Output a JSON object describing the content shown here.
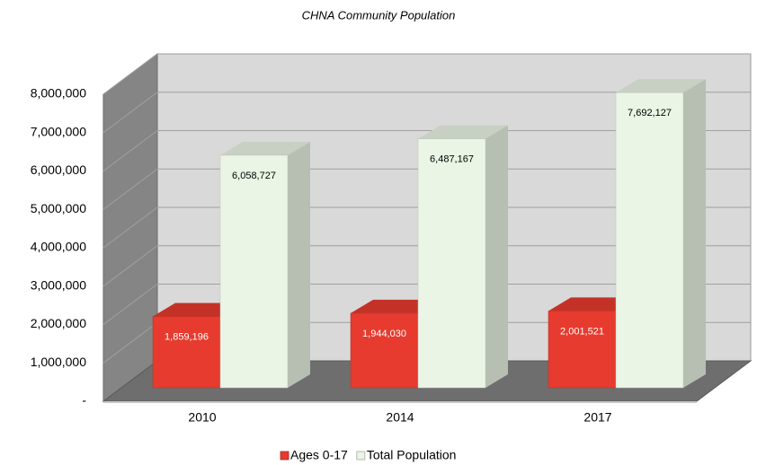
{
  "chart_data": {
    "type": "bar3d",
    "title": "CHNA Community Population",
    "categories": [
      "2010",
      "2014",
      "2017"
    ],
    "series": [
      {
        "name": "Ages 0-17",
        "color": "#e63b2e",
        "values": [
          1859196,
          1944030,
          2001521
        ],
        "value_labels": [
          "1,859,196",
          "1,944,030",
          "2,001,521"
        ]
      },
      {
        "name": "Total Population",
        "color": "#eaf5e5",
        "values": [
          6058727,
          6487167,
          7692127
        ],
        "value_labels": [
          "6,058,727",
          "6,487,167",
          "7,692,127"
        ]
      }
    ],
    "ylim": [
      0,
      8000000
    ],
    "yticks": [
      {
        "value": 0,
        "label": "-"
      },
      {
        "value": 1000000,
        "label": "1,000,000"
      },
      {
        "value": 2000000,
        "label": "2,000,000"
      },
      {
        "value": 3000000,
        "label": "3,000,000"
      },
      {
        "value": 4000000,
        "label": "4,000,000"
      },
      {
        "value": 5000000,
        "label": "5,000,000"
      },
      {
        "value": 6000000,
        "label": "6,000,000"
      },
      {
        "value": 7000000,
        "label": "7,000,000"
      },
      {
        "value": 8000000,
        "label": "8,000,000"
      }
    ],
    "grid": true,
    "legend": "bottom"
  }
}
